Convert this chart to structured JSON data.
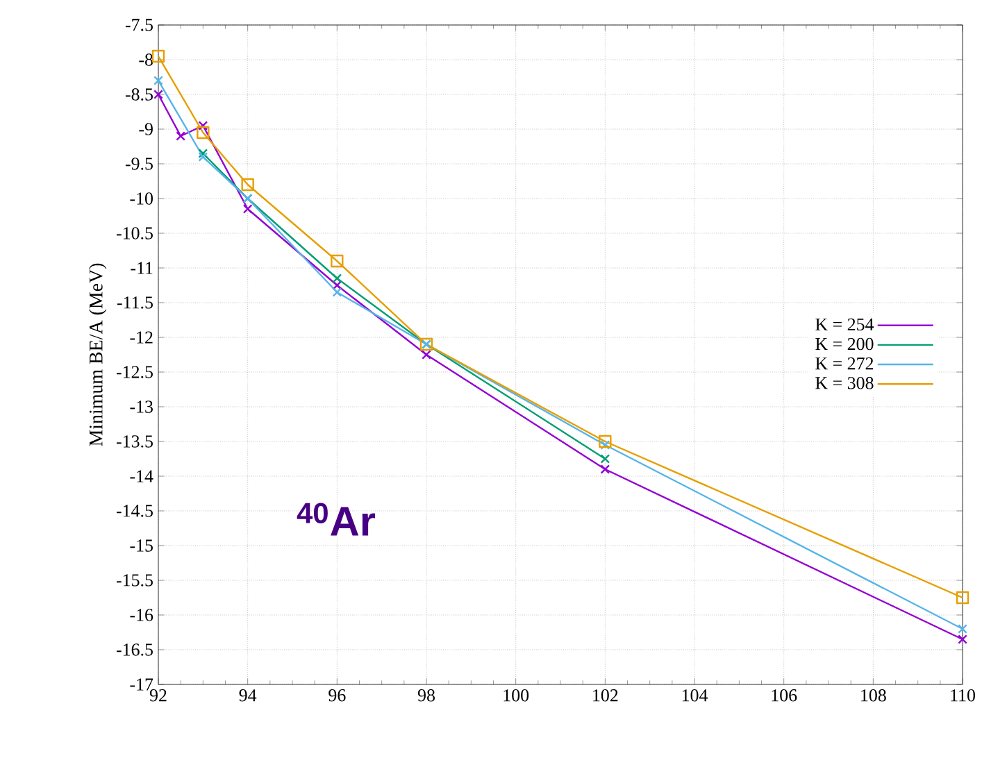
{
  "chart_data": {
    "type": "line",
    "ylabel": "Minimum BE/A (MeV)",
    "series": [
      {
        "name": "K = 254",
        "color": "#9400d3",
        "marker": "cross",
        "x": [
          92,
          92.5,
          93,
          94,
          96,
          98,
          102,
          110
        ],
        "values": [
          -8.5,
          -9.1,
          -8.95,
          -10.15,
          -11.25,
          -12.25,
          -13.9,
          -16.35
        ]
      },
      {
        "name": "K = 200",
        "color": "#009e73",
        "marker": "cross",
        "x": [
          93,
          94,
          96,
          98,
          102
        ],
        "values": [
          -9.35,
          -10.0,
          -11.15,
          -12.1,
          -13.75
        ]
      },
      {
        "name": "K = 272",
        "color": "#56b4e9",
        "marker": "cross",
        "x": [
          92,
          93,
          94,
          96,
          98,
          102,
          110
        ],
        "values": [
          -8.3,
          -9.4,
          -10.0,
          -11.35,
          -12.1,
          -13.55,
          -16.2
        ]
      },
      {
        "name": "K = 308",
        "color": "#e69f00",
        "marker": "square",
        "x": [
          92,
          93,
          94,
          96,
          98,
          102,
          110
        ],
        "values": [
          -7.95,
          -9.05,
          -9.8,
          -10.9,
          -12.1,
          -13.5,
          -15.75
        ]
      }
    ],
    "xlim": [
      92,
      110
    ],
    "xticks": [
      92,
      94,
      96,
      98,
      100,
      102,
      104,
      106,
      108,
      110
    ],
    "ylim": [
      -17,
      -7.5
    ],
    "yticks": [
      -17,
      -16.5,
      -16,
      -15.5,
      -15,
      -14.5,
      -14,
      -13.5,
      -13,
      -12.5,
      -12,
      -11.5,
      -11,
      -10.5,
      -10,
      -9.5,
      -9,
      -8.5,
      -8,
      -7.5
    ],
    "grid": true,
    "legend": "right",
    "line_style": "solid",
    "annotations": [
      "$^{40}$Ar"
    ]
  }
}
